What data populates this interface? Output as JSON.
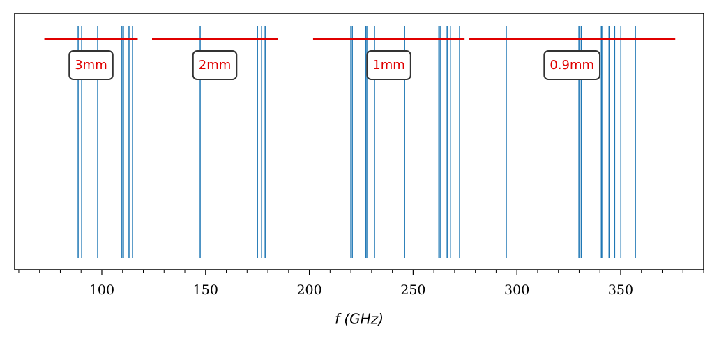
{
  "chart_data": {
    "type": "vlines",
    "xlabel": "f (GHz)",
    "xlim": [
      58,
      390
    ],
    "xticks": [
      100,
      150,
      200,
      250,
      300,
      350
    ],
    "xminorticks": [
      60,
      70,
      80,
      90,
      110,
      120,
      130,
      140,
      160,
      170,
      180,
      190,
      210,
      220,
      230,
      240,
      260,
      270,
      280,
      290,
      310,
      320,
      330,
      340,
      360,
      370,
      380,
      390
    ],
    "line_color": "#1f77b4",
    "lines": [
      88.6,
      90.3,
      98.0,
      109.7,
      110.4,
      113.1,
      114.8,
      147.4,
      175.0,
      177.0,
      178.7,
      220.0,
      220.7,
      227.1,
      227.7,
      231.4,
      245.9,
      262.4,
      263.0,
      266.4,
      268.1,
      272.4,
      294.9,
      329.9,
      331.0,
      340.7,
      341.3,
      344.4,
      347.1,
      350.1,
      357.1
    ],
    "band_color": "#e00000",
    "bands": [
      {
        "label": "3mm",
        "start": 72.3,
        "end": 117.3
      },
      {
        "label": "2mm",
        "start": 124.2,
        "end": 184.7
      },
      {
        "label": "1mm",
        "start": 201.8,
        "end": 274.8
      },
      {
        "label": "0.9mm",
        "start": 276.8,
        "end": 376.3
      }
    ]
  }
}
